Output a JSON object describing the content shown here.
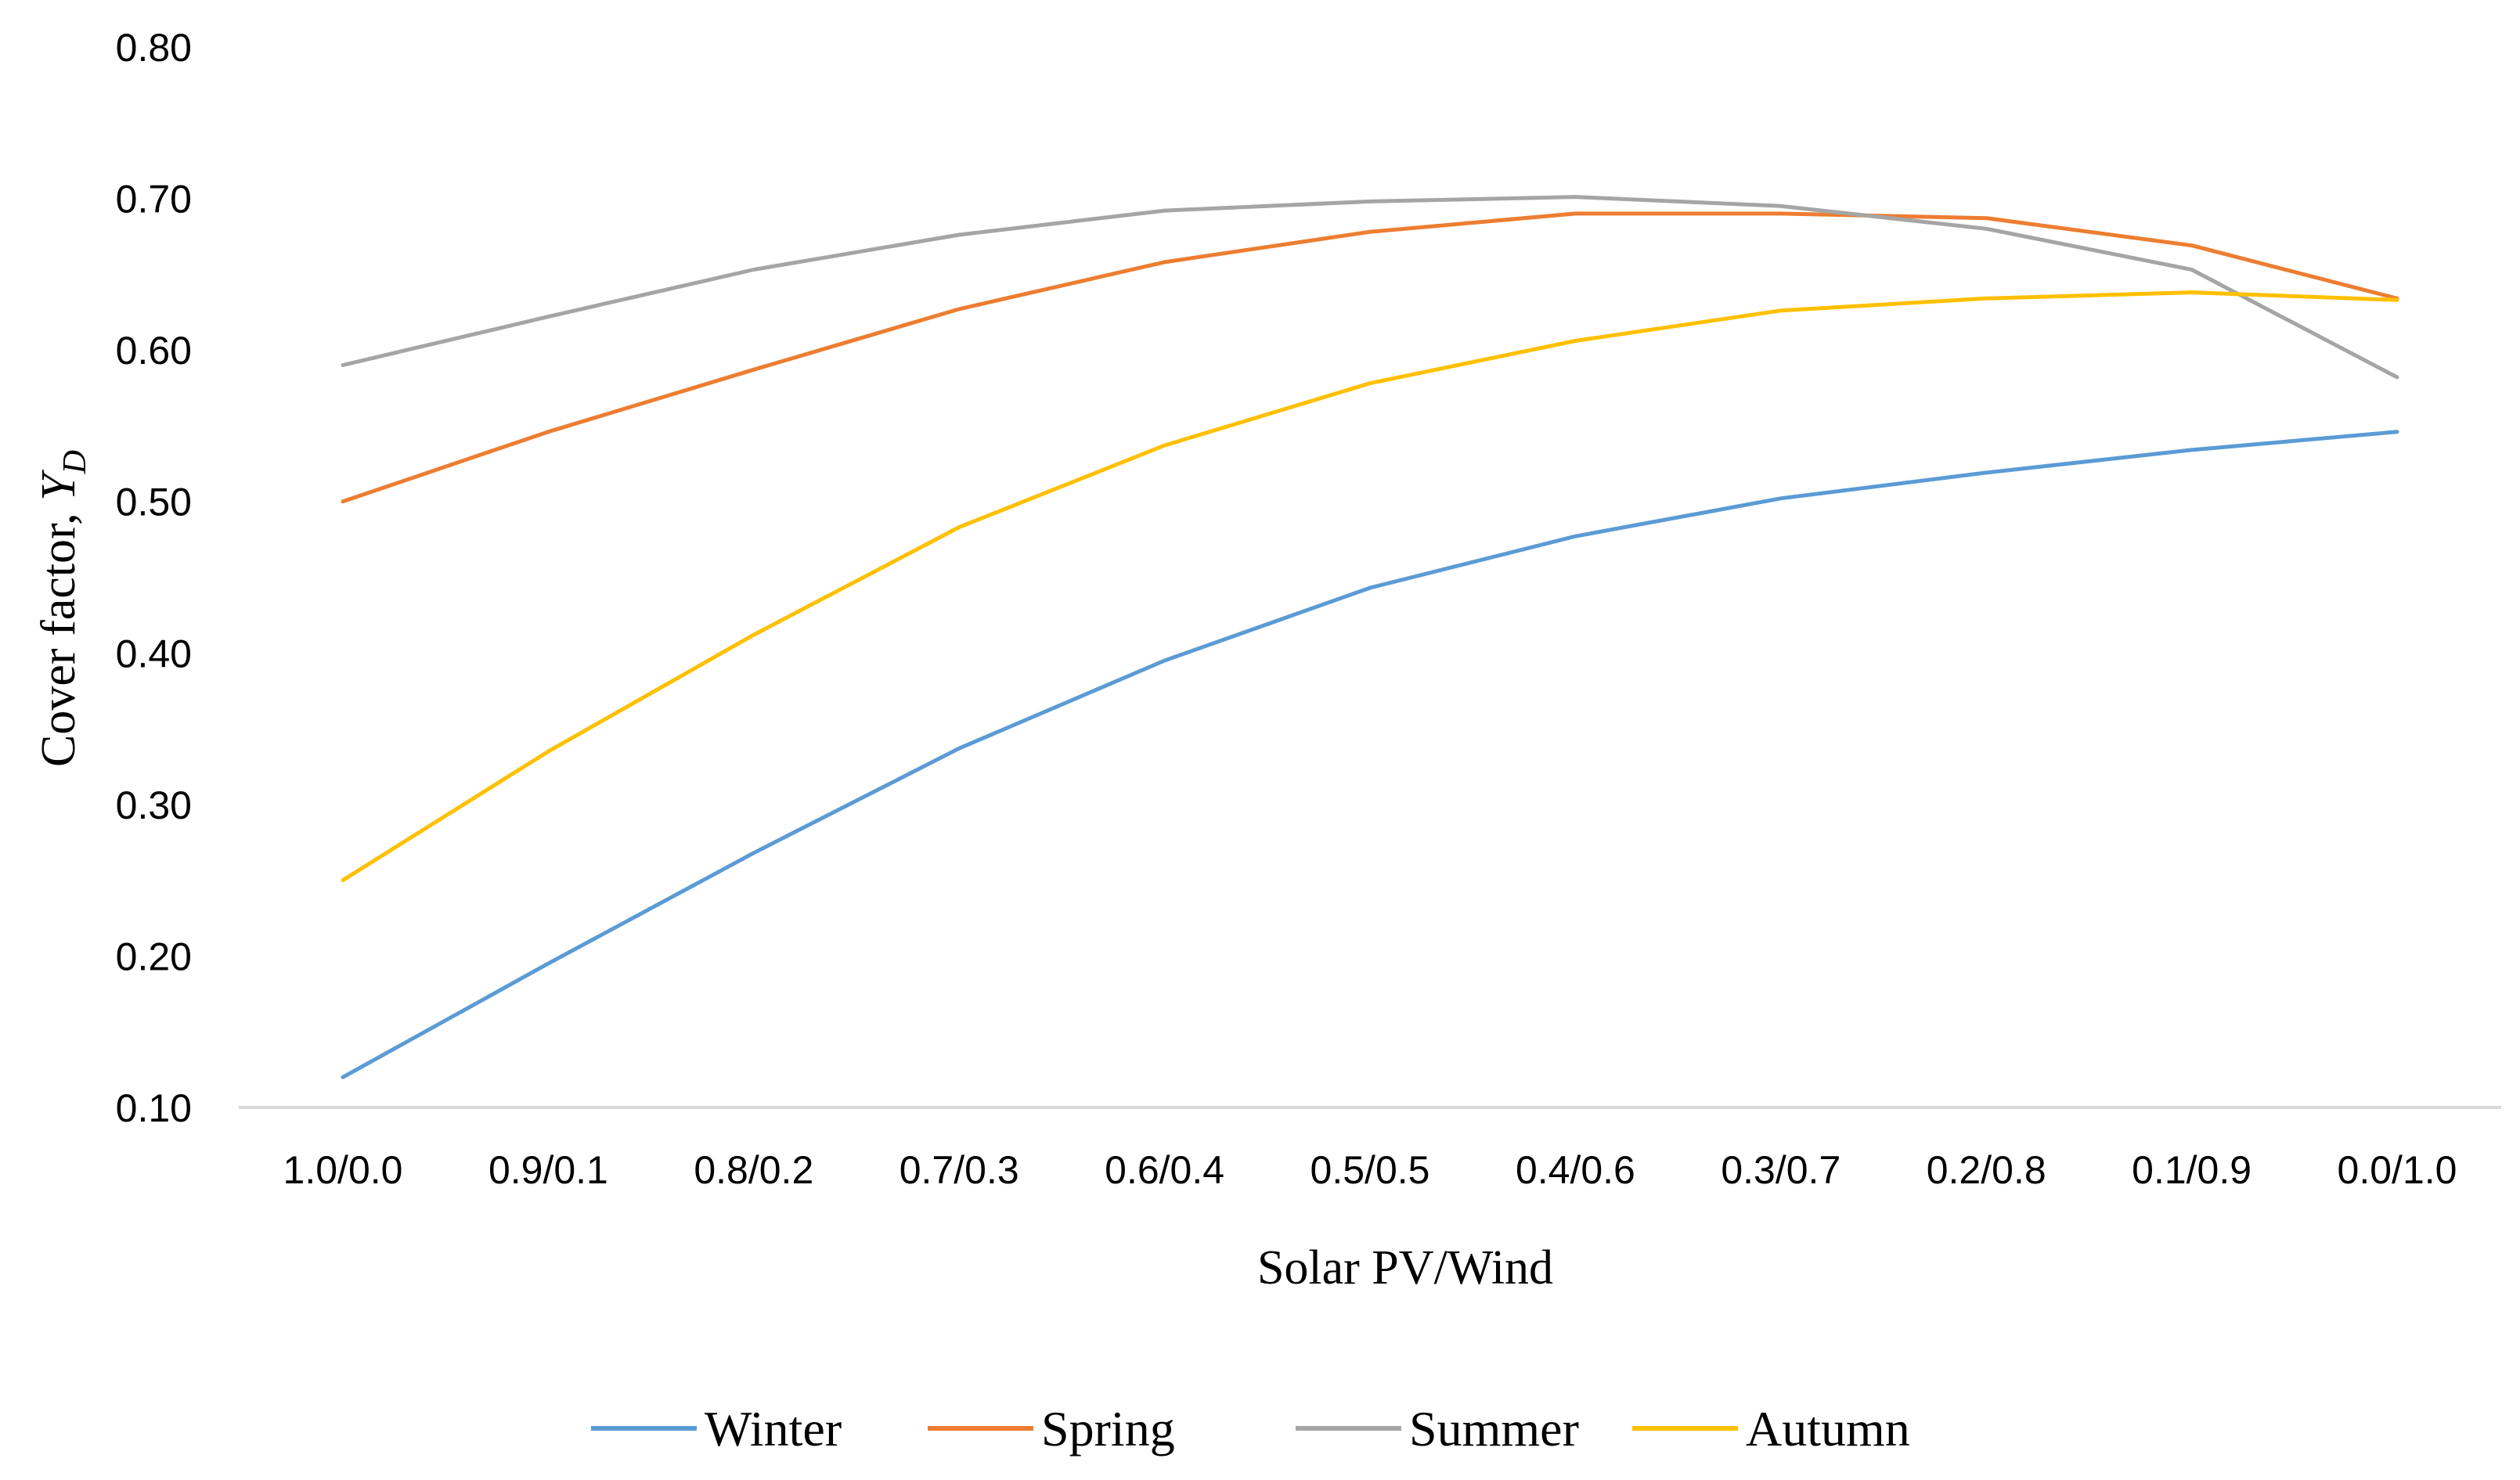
{
  "chart_data": {
    "type": "line",
    "title": "",
    "xlabel": "Solar PV/Wind",
    "ylabel": "Cover factor, ",
    "ylabel_symbol": "Y",
    "ylabel_subscript": "D",
    "categories": [
      "1.0/0.0",
      "0.9/0.1",
      "0.8/0.2",
      "0.7/0.3",
      "0.6/0.4",
      "0.5/0.5",
      "0.4/0.6",
      "0.3/0.7",
      "0.2/0.8",
      "0.1/0.9",
      "0.0/1.0"
    ],
    "ylim": [
      0.1,
      0.8
    ],
    "yticks": [
      "0.10",
      "0.20",
      "0.30",
      "0.40",
      "0.50",
      "0.60",
      "0.70",
      "0.80"
    ],
    "grid": false,
    "legend_position": "bottom",
    "series": [
      {
        "name": "Winter",
        "color": "#5B9BD5",
        "values": [
          0.12,
          0.195,
          0.268,
          0.337,
          0.395,
          0.443,
          0.477,
          0.502,
          0.519,
          0.534,
          0.546
        ]
      },
      {
        "name": "Spring",
        "color": "#ED7D31",
        "values": [
          0.5,
          0.546,
          0.587,
          0.627,
          0.658,
          0.678,
          0.69,
          0.69,
          0.687,
          0.669,
          0.634
        ]
      },
      {
        "name": "Summer",
        "color": "#A5A5A5",
        "values": [
          0.59,
          0.622,
          0.653,
          0.676,
          0.692,
          0.698,
          0.701,
          0.695,
          0.68,
          0.653,
          0.582
        ]
      },
      {
        "name": "Autumn",
        "color": "#FFC000",
        "values": [
          0.25,
          0.335,
          0.412,
          0.483,
          0.537,
          0.578,
          0.606,
          0.626,
          0.634,
          0.638,
          0.633
        ]
      }
    ]
  }
}
